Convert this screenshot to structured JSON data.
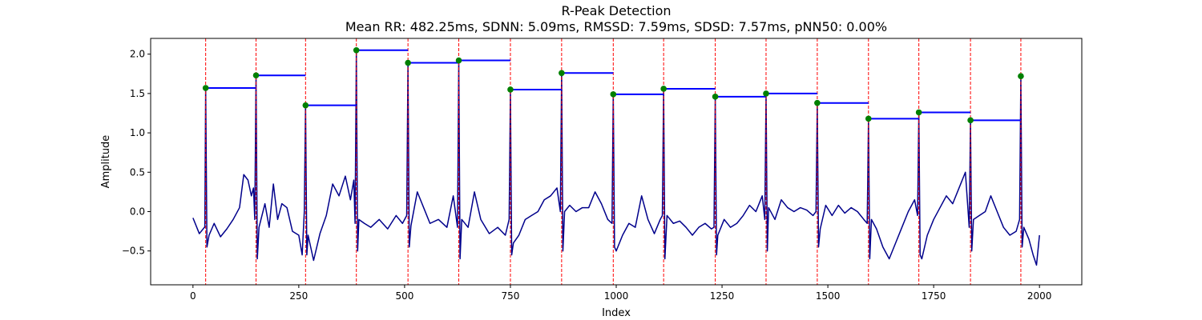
{
  "chart_data": {
    "type": "line",
    "title": "R-Peak Detection",
    "subtitle": "Mean RR: 482.25ms, SDNN: 5.09ms, RMSSD: 7.59ms, SDSD: 7.57ms, pNN50: 0.00%",
    "xlabel": "Index",
    "ylabel": "Amplitude",
    "xlim": [
      -100,
      2100
    ],
    "ylim": [
      -0.93,
      2.2
    ],
    "xticks": [
      0,
      250,
      500,
      750,
      1000,
      1250,
      1500,
      1750,
      2000
    ],
    "yticks": [
      -0.5,
      0.0,
      0.5,
      1.0,
      1.5,
      2.0
    ],
    "ytick_labels": [
      "−0.5",
      "0.0",
      "0.5",
      "1.0",
      "1.5",
      "2.0"
    ],
    "grid": false,
    "colors": {
      "signal": "#00008b",
      "peak_line": "#ff0000",
      "rr_segment": "#0000ff",
      "peak_marker": "#008000"
    },
    "r_peaks": [
      {
        "x": 30,
        "y": 1.57
      },
      {
        "x": 149,
        "y": 1.73
      },
      {
        "x": 266,
        "y": 1.35
      },
      {
        "x": 386,
        "y": 2.05
      },
      {
        "x": 508,
        "y": 1.89
      },
      {
        "x": 628,
        "y": 1.92
      },
      {
        "x": 750,
        "y": 1.55
      },
      {
        "x": 871,
        "y": 1.76
      },
      {
        "x": 993,
        "y": 1.49
      },
      {
        "x": 1112,
        "y": 1.56
      },
      {
        "x": 1234,
        "y": 1.46
      },
      {
        "x": 1354,
        "y": 1.5
      },
      {
        "x": 1475,
        "y": 1.38
      },
      {
        "x": 1596,
        "y": 1.18
      },
      {
        "x": 1715,
        "y": 1.26
      },
      {
        "x": 1837,
        "y": 1.16
      },
      {
        "x": 1956,
        "y": 1.72
      }
    ],
    "signal_baseline": [
      [
        0,
        -0.08
      ],
      [
        15,
        -0.28
      ],
      [
        28,
        -0.2
      ],
      [
        38,
        -0.3
      ],
      [
        50,
        -0.15
      ],
      [
        65,
        -0.32
      ],
      [
        80,
        -0.22
      ],
      [
        95,
        -0.1
      ],
      [
        110,
        0.05
      ],
      [
        120,
        0.47
      ],
      [
        130,
        0.4
      ],
      [
        138,
        0.2
      ],
      [
        143,
        0.3
      ],
      [
        156,
        -0.2
      ],
      [
        170,
        0.1
      ],
      [
        180,
        -0.2
      ],
      [
        190,
        0.35
      ],
      [
        200,
        -0.1
      ],
      [
        210,
        0.1
      ],
      [
        222,
        0.05
      ],
      [
        235,
        -0.25
      ],
      [
        250,
        -0.3
      ],
      [
        258,
        -0.55
      ],
      [
        272,
        -0.3
      ],
      [
        285,
        -0.62
      ],
      [
        300,
        -0.28
      ],
      [
        315,
        -0.05
      ],
      [
        330,
        0.35
      ],
      [
        345,
        0.2
      ],
      [
        360,
        0.45
      ],
      [
        372,
        0.15
      ],
      [
        380,
        0.4
      ],
      [
        392,
        -0.1
      ],
      [
        405,
        -0.15
      ],
      [
        420,
        -0.2
      ],
      [
        440,
        -0.1
      ],
      [
        460,
        -0.22
      ],
      [
        480,
        -0.05
      ],
      [
        495,
        -0.15
      ],
      [
        515,
        -0.18
      ],
      [
        530,
        0.25
      ],
      [
        545,
        0.05
      ],
      [
        560,
        -0.15
      ],
      [
        580,
        -0.1
      ],
      [
        600,
        -0.2
      ],
      [
        615,
        0.2
      ],
      [
        635,
        -0.1
      ],
      [
        650,
        -0.2
      ],
      [
        665,
        0.25
      ],
      [
        680,
        -0.1
      ],
      [
        700,
        -0.28
      ],
      [
        720,
        -0.2
      ],
      [
        738,
        -0.3
      ],
      [
        757,
        -0.4
      ],
      [
        770,
        -0.3
      ],
      [
        785,
        -0.1
      ],
      [
        800,
        -0.05
      ],
      [
        815,
        0.0
      ],
      [
        830,
        0.15
      ],
      [
        845,
        0.2
      ],
      [
        860,
        0.3
      ],
      [
        878,
        0.0
      ],
      [
        890,
        0.08
      ],
      [
        905,
        0.0
      ],
      [
        920,
        0.05
      ],
      [
        935,
        0.05
      ],
      [
        950,
        0.25
      ],
      [
        965,
        0.1
      ],
      [
        980,
        -0.1
      ],
      [
        1000,
        -0.5
      ],
      [
        1015,
        -0.3
      ],
      [
        1030,
        -0.15
      ],
      [
        1045,
        -0.2
      ],
      [
        1060,
        0.2
      ],
      [
        1075,
        -0.1
      ],
      [
        1090,
        -0.28
      ],
      [
        1104,
        -0.1
      ],
      [
        1120,
        -0.05
      ],
      [
        1135,
        -0.15
      ],
      [
        1150,
        -0.12
      ],
      [
        1165,
        -0.2
      ],
      [
        1180,
        -0.3
      ],
      [
        1195,
        -0.2
      ],
      [
        1210,
        -0.15
      ],
      [
        1225,
        -0.22
      ],
      [
        1240,
        -0.3
      ],
      [
        1255,
        -0.1
      ],
      [
        1270,
        -0.2
      ],
      [
        1285,
        -0.15
      ],
      [
        1300,
        -0.05
      ],
      [
        1315,
        0.08
      ],
      [
        1330,
        0.0
      ],
      [
        1345,
        0.2
      ],
      [
        1360,
        0.05
      ],
      [
        1375,
        -0.1
      ],
      [
        1390,
        0.15
      ],
      [
        1405,
        0.05
      ],
      [
        1420,
        0.0
      ],
      [
        1435,
        0.05
      ],
      [
        1450,
        0.02
      ],
      [
        1465,
        -0.05
      ],
      [
        1482,
        -0.22
      ],
      [
        1495,
        0.08
      ],
      [
        1510,
        -0.05
      ],
      [
        1525,
        0.08
      ],
      [
        1540,
        -0.02
      ],
      [
        1555,
        0.05
      ],
      [
        1570,
        0.0
      ],
      [
        1585,
        -0.1
      ],
      [
        1603,
        -0.1
      ],
      [
        1615,
        -0.22
      ],
      [
        1630,
        -0.45
      ],
      [
        1645,
        -0.6
      ],
      [
        1660,
        -0.4
      ],
      [
        1675,
        -0.2
      ],
      [
        1690,
        0.0
      ],
      [
        1705,
        0.15
      ],
      [
        1722,
        -0.6
      ],
      [
        1735,
        -0.3
      ],
      [
        1750,
        -0.1
      ],
      [
        1765,
        0.05
      ],
      [
        1780,
        0.2
      ],
      [
        1795,
        0.1
      ],
      [
        1810,
        0.3
      ],
      [
        1825,
        0.5
      ],
      [
        1844,
        -0.1
      ],
      [
        1858,
        -0.05
      ],
      [
        1872,
        0.0
      ],
      [
        1885,
        0.2
      ],
      [
        1900,
        0.0
      ],
      [
        1915,
        -0.2
      ],
      [
        1930,
        -0.3
      ],
      [
        1945,
        -0.25
      ],
      [
        1963,
        -0.2
      ],
      [
        1975,
        -0.35
      ],
      [
        1985,
        -0.55
      ],
      [
        1993,
        -0.68
      ],
      [
        2000,
        -0.3
      ]
    ]
  }
}
